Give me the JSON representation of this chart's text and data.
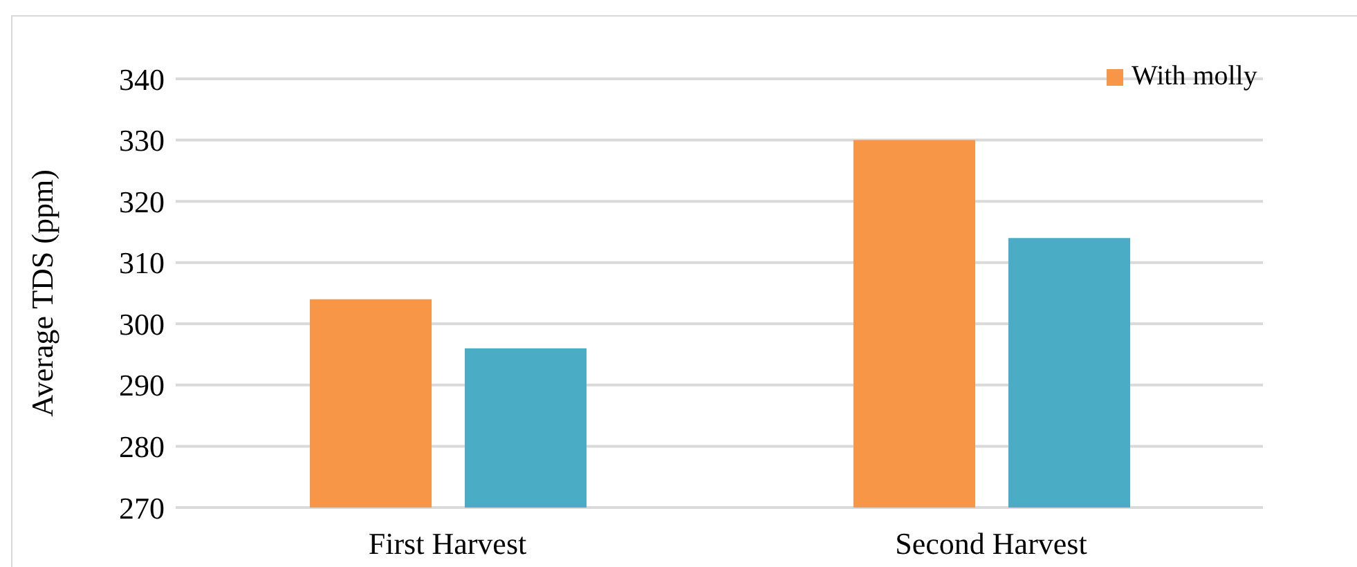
{
  "chart_data": {
    "type": "bar",
    "ylabel": "Average TDS (ppm)",
    "categories": [
      "First Harvest",
      "Second Harvest"
    ],
    "series": [
      {
        "name": "With molly",
        "color": "#f79646",
        "values": [
          304,
          330
        ]
      },
      {
        "color": "#4bacc6",
        "values": [
          296,
          314
        ]
      }
    ],
    "ylim": [
      270,
      340
    ],
    "yticks": [
      270,
      280,
      290,
      300,
      310,
      320,
      330,
      340
    ],
    "grid": "y",
    "legend": "top right"
  }
}
